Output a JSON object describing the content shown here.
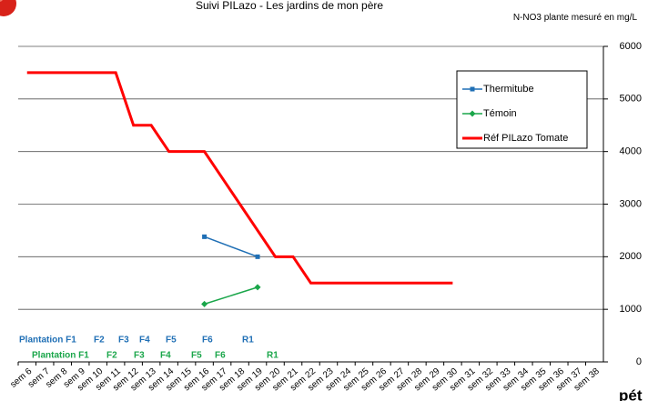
{
  "chart_data": {
    "type": "line",
    "title": "Suivi PILazo - Les jardins de mon père",
    "y_axis_label": "N-NO3 plante mesuré en mg/L",
    "categories": [
      "sem 6",
      "sem 7",
      "sem 8",
      "sem 9",
      "sem 10",
      "sem 11",
      "sem 12",
      "sem 13",
      "sem 14",
      "sem 15",
      "sem 16",
      "sem 17",
      "sem 18",
      "sem 19",
      "sem 20",
      "sem 21",
      "sem 22",
      "sem 23",
      "sem 24",
      "sem 25",
      "sem 26",
      "sem 27",
      "sem 28",
      "sem 29",
      "sem 30",
      "sem 31",
      "sem 32",
      "sem 33",
      "sem 34",
      "sem 35",
      "sem 36",
      "sem 37",
      "sem 38"
    ],
    "series": [
      {
        "name": "Thermitube",
        "color": "#1f6fb5",
        "marker": "square",
        "values": [
          null,
          null,
          null,
          null,
          null,
          null,
          null,
          null,
          null,
          null,
          2380,
          null,
          null,
          2000,
          null,
          null,
          null,
          null,
          null,
          null,
          null,
          null,
          null,
          null,
          null,
          null,
          null,
          null,
          null,
          null,
          null,
          null,
          null
        ]
      },
      {
        "name": "Témoin",
        "color": "#1aa64a",
        "marker": "diamond",
        "values": [
          null,
          null,
          null,
          null,
          null,
          null,
          null,
          null,
          null,
          null,
          1100,
          null,
          null,
          1420,
          null,
          null,
          null,
          null,
          null,
          null,
          null,
          null,
          null,
          null,
          null,
          null,
          null,
          null,
          null,
          null,
          null,
          null,
          null
        ]
      },
      {
        "name": "Réf PILazo Tomate",
        "color": "#ff0000",
        "marker": "none",
        "values": [
          5500,
          5500,
          5500,
          5500,
          5500,
          5500,
          4500,
          4500,
          4000,
          4000,
          4000,
          3500,
          3000,
          2500,
          2000,
          2000,
          1500,
          1500,
          1500,
          1500,
          1500,
          1500,
          1500,
          1500,
          1500,
          null,
          null,
          null,
          null,
          null,
          null,
          null,
          null
        ]
      }
    ],
    "ylim": [
      0,
      6000
    ],
    "yticks": [
      0,
      1000,
      2000,
      3000,
      4000,
      5000,
      6000
    ],
    "grid": true,
    "y_axis_side": "right",
    "annotations": {
      "blue_row": {
        "color": "#1f6fb5",
        "texts": [
          "Plantation F1",
          "F2",
          "F3",
          "F4",
          "F5",
          "F6",
          "R1"
        ]
      },
      "green_row": {
        "color": "#1aa64a",
        "texts": [
          "Plantation F1",
          "F2",
          "F3",
          "F4",
          "F5",
          "F6",
          "R1"
        ]
      }
    },
    "footer_fragment": "pét"
  }
}
